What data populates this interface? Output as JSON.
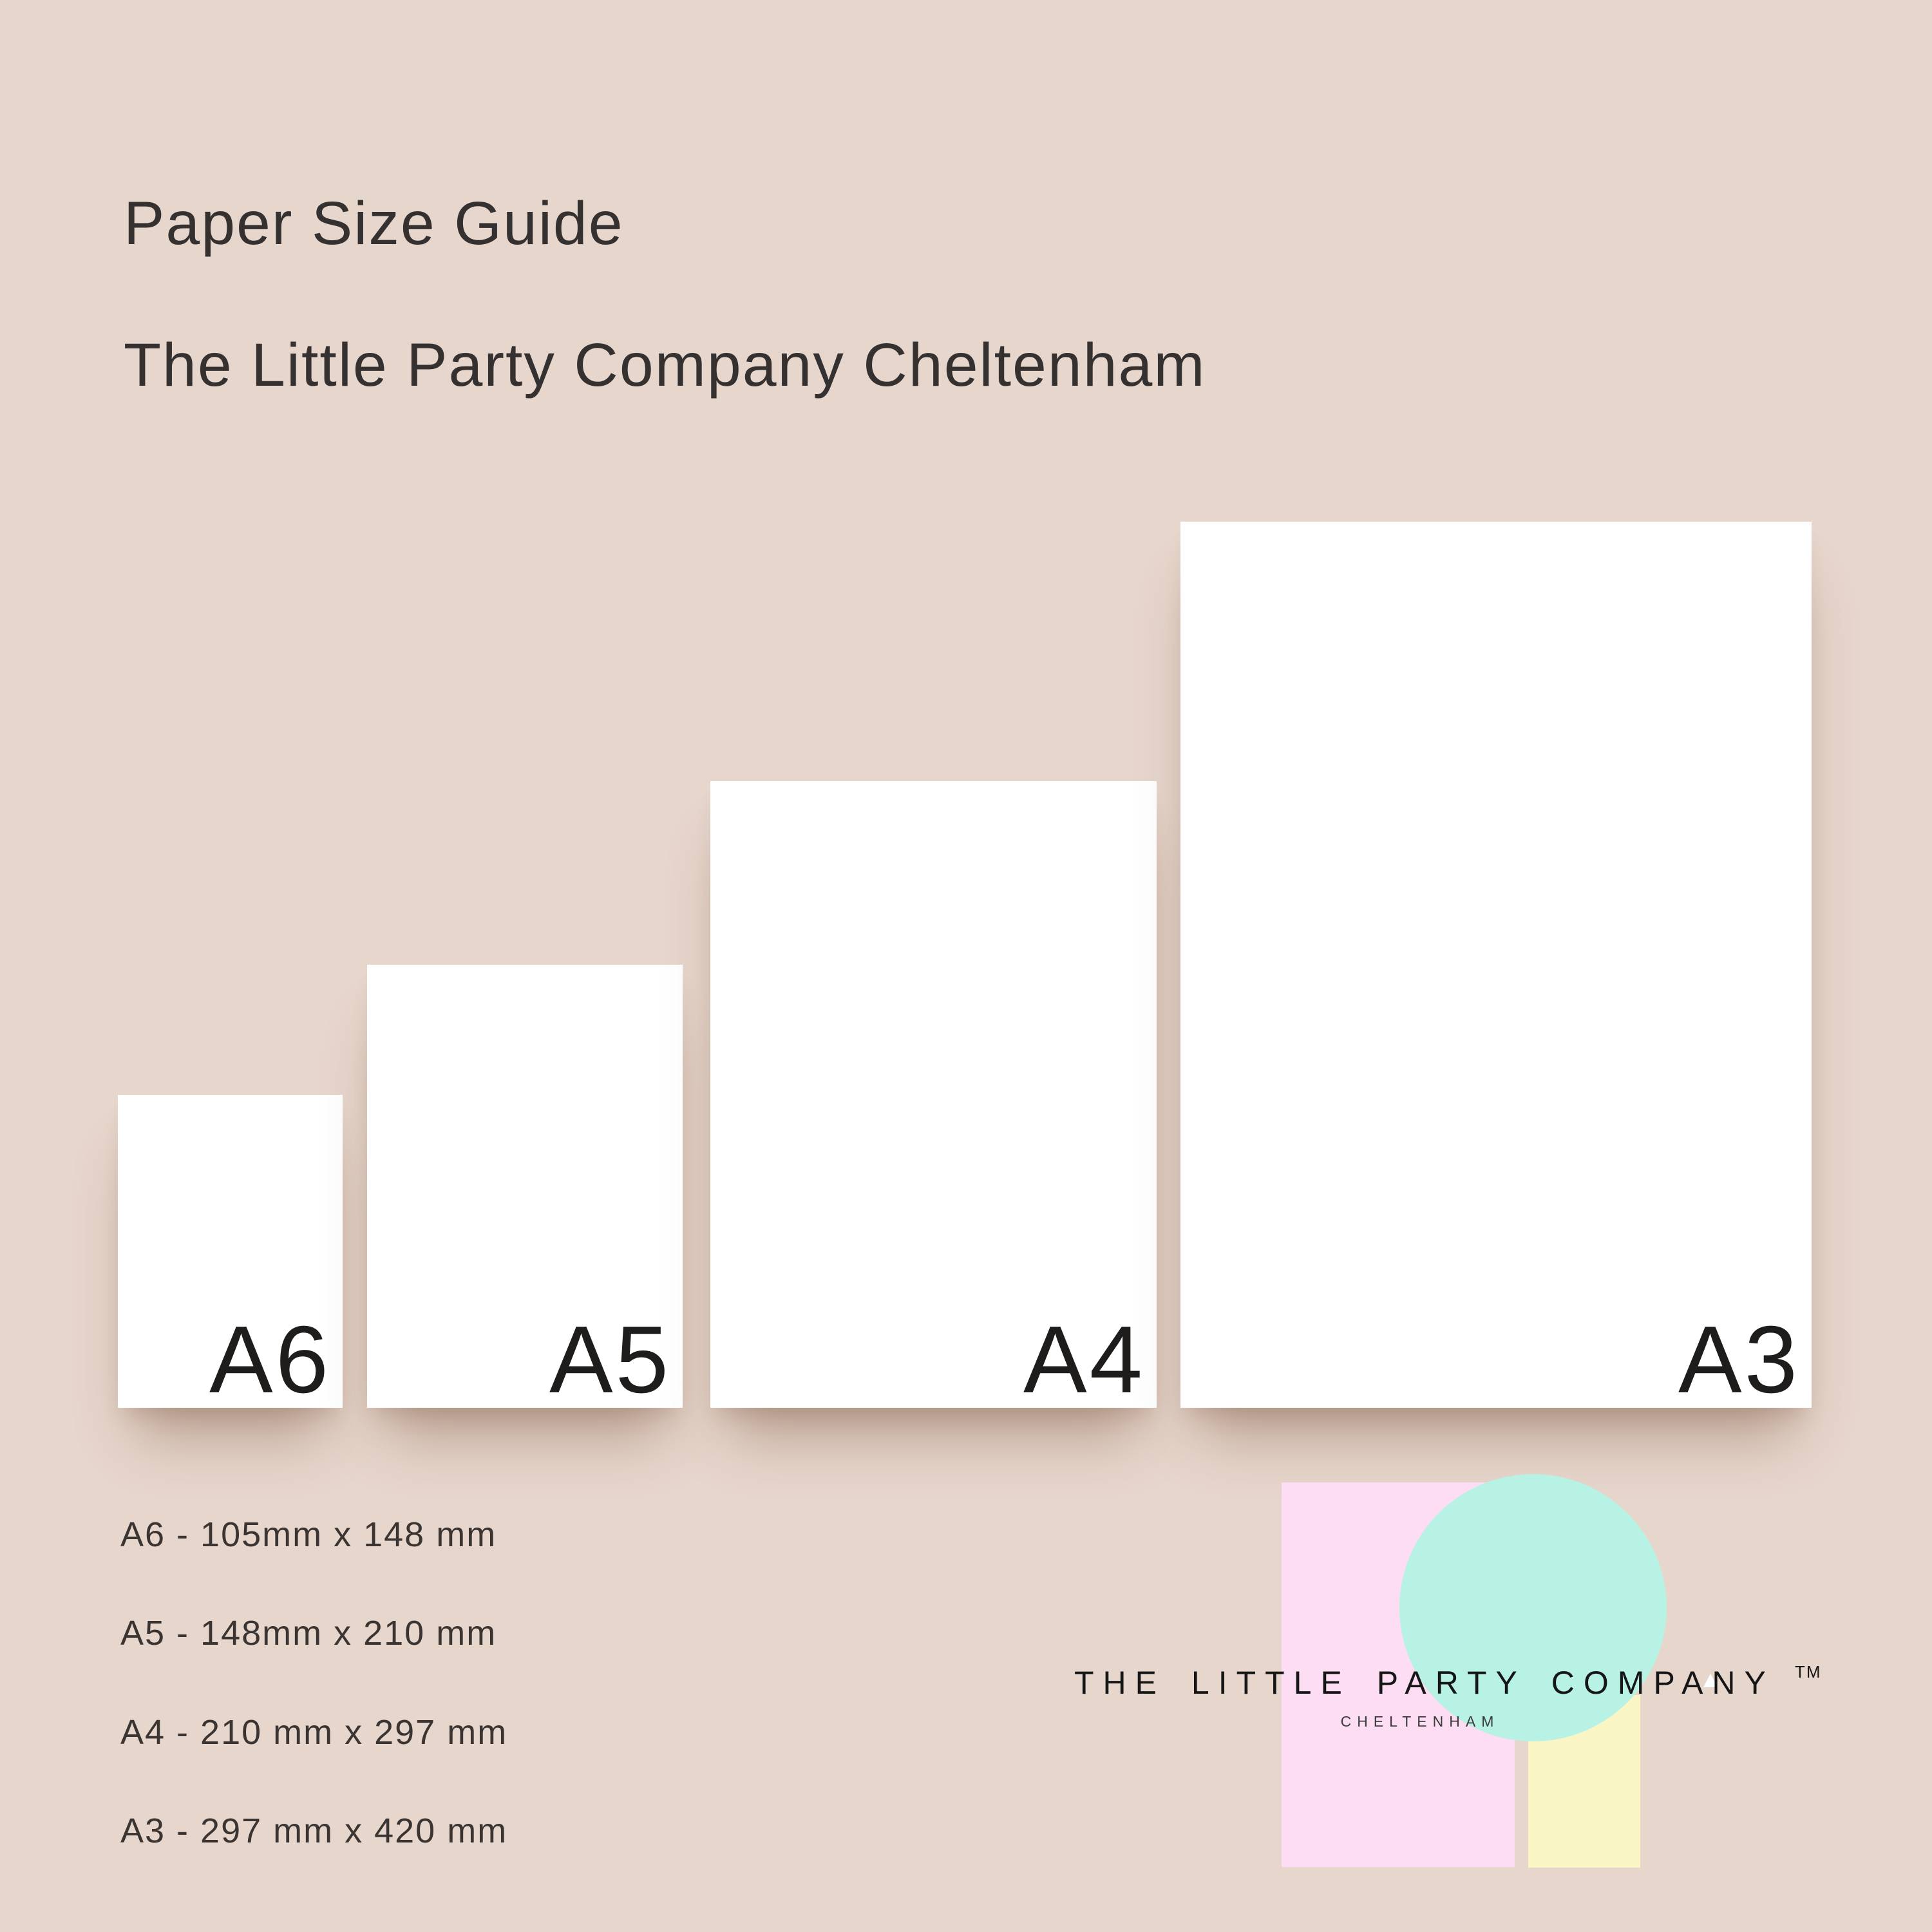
{
  "header": {
    "title": "Paper Size Guide",
    "subtitle": "The Little Party Company Cheltenham"
  },
  "sheets": [
    {
      "label": "A6",
      "size_text": "A6 - 105mm x 148 mm"
    },
    {
      "label": "A5",
      "size_text": "A5 - 148mm x 210 mm"
    },
    {
      "label": "A4",
      "size_text": "A4 - 210 mm x 297 mm"
    },
    {
      "label": "A3",
      "size_text": "A3 - 297 mm x 420 mm"
    }
  ],
  "logo": {
    "name": "THE LITTLE PARTY COMPANY",
    "trademark": "TM",
    "location": "CHELTENHAM"
  },
  "colors": {
    "background": "#e7d6cc",
    "paper": "#ffffff",
    "logo_pink": "#fcddf3",
    "logo_mint": "#b7f2e4",
    "logo_yellow": "#faf5c5",
    "heading_text": "#343130",
    "label_text": "#1f1d1c",
    "list_text": "#3a3432",
    "logo_text": "#161616"
  }
}
